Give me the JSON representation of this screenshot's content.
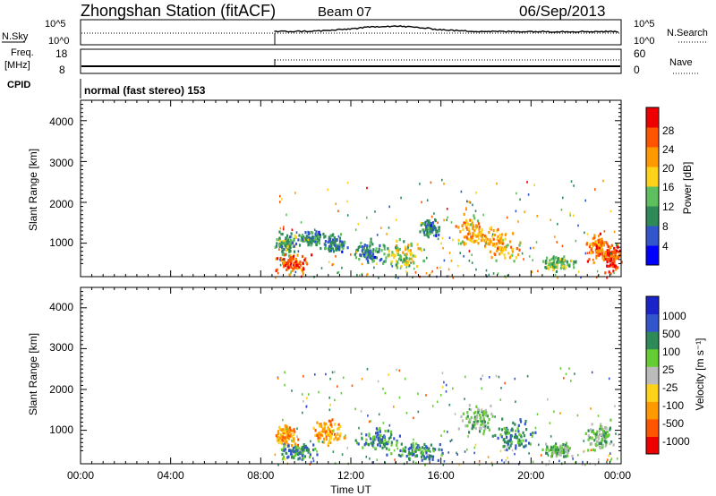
{
  "header": {
    "station": "Zhongshan Station (fitACF)",
    "beam": "Beam 07",
    "date": "06/Sep/2013"
  },
  "strip_panels": {
    "nsky": {
      "label": "N.Sky",
      "right_label": "N.Search",
      "left_ticks": [
        "10^5",
        "10^0"
      ],
      "right_ticks": [
        "10^5",
        "10^0"
      ]
    },
    "freq": {
      "label_line1": "Freq.",
      "label_line2": "[MHz]",
      "right_label": "Nave",
      "left_ticks": [
        "18",
        "8"
      ],
      "right_ticks": [
        "60",
        "0"
      ]
    },
    "cpid": {
      "label": "CPID",
      "mode": "normal (fast stereo) 153"
    }
  },
  "colors": {
    "power_scale": [
      "#0000ff",
      "#3355cc",
      "#2e8b57",
      "#5fbf5f",
      "#ffd21a",
      "#ff9900",
      "#ff5500",
      "#ee0000"
    ],
    "velocity_scale": [
      "#ee0000",
      "#ff5500",
      "#ff9900",
      "#ffd21a",
      "#bbbbbb",
      "#66cc33",
      "#2e8b57",
      "#3355cc",
      "#1b24c8"
    ]
  },
  "chart_data": [
    {
      "type": "heatmap",
      "title": "",
      "ylabel": "Slant Range [km]",
      "xlabel": "Time UT",
      "x_ticks": [
        "00:00",
        "04:00",
        "08:00",
        "12:00",
        "16:00",
        "20:00",
        "00:00"
      ],
      "y_ticks": [
        "1000",
        "2000",
        "3000",
        "4000"
      ],
      "xlim": [
        0,
        24
      ],
      "ylim": [
        180,
        4500
      ],
      "colorbar": {
        "label": "Power [dB]",
        "ticks": [
          "28",
          "24",
          "20",
          "16",
          "12",
          "8",
          "4"
        ],
        "range": [
          0,
          32
        ]
      },
      "data_window_hours": [
        8.6,
        24
      ],
      "clusters": [
        {
          "t": 9.1,
          "r": 1000,
          "dt": 0.6,
          "dr": 350,
          "level": 12
        },
        {
          "t": 9.3,
          "r": 550,
          "dt": 1.0,
          "dr": 280,
          "level": 26
        },
        {
          "t": 10.2,
          "r": 1150,
          "dt": 0.6,
          "dr": 200,
          "level": 10
        },
        {
          "t": 11.2,
          "r": 1000,
          "dt": 0.7,
          "dr": 300,
          "level": 9
        },
        {
          "t": 12.8,
          "r": 800,
          "dt": 0.9,
          "dr": 350,
          "level": 10
        },
        {
          "t": 14.3,
          "r": 750,
          "dt": 1.0,
          "dr": 400,
          "level": 16
        },
        {
          "t": 15.5,
          "r": 1400,
          "dt": 0.5,
          "dr": 300,
          "level": 9
        },
        {
          "t": 17.4,
          "r": 1300,
          "dt": 0.9,
          "dr": 500,
          "level": 21
        },
        {
          "t": 18.6,
          "r": 1000,
          "dt": 1.0,
          "dr": 500,
          "level": 20
        },
        {
          "t": 21.2,
          "r": 550,
          "dt": 0.8,
          "dr": 220,
          "level": 14
        },
        {
          "t": 22.9,
          "r": 900,
          "dt": 0.6,
          "dr": 400,
          "level": 24
        },
        {
          "t": 23.6,
          "r": 700,
          "dt": 0.5,
          "dr": 450,
          "level": 27
        }
      ]
    },
    {
      "type": "heatmap",
      "title": "",
      "ylabel": "Slant Range [km]",
      "xlabel": "Time UT",
      "x_ticks": [
        "00:00",
        "04:00",
        "08:00",
        "12:00",
        "16:00",
        "20:00",
        "00:00"
      ],
      "y_ticks": [
        "1000",
        "2000",
        "3000",
        "4000"
      ],
      "xlim": [
        0,
        24
      ],
      "ylim": [
        180,
        4500
      ],
      "colorbar": {
        "label": "Velocity [m s⁻¹]",
        "ticks": [
          "1000",
          "500",
          "100",
          "25",
          "-25",
          "-100",
          "-500",
          "-1000"
        ]
      },
      "data_window_hours": [
        8.6,
        24
      ],
      "clusters": [
        {
          "t": 9.1,
          "r": 900,
          "dt": 0.6,
          "dr": 350,
          "level": -100
        },
        {
          "t": 9.6,
          "r": 500,
          "dt": 1.0,
          "dr": 280,
          "level": 500
        },
        {
          "t": 11.0,
          "r": 1000,
          "dt": 0.9,
          "dr": 350,
          "level": -100
        },
        {
          "t": 13.2,
          "r": 800,
          "dt": 1.2,
          "dr": 400,
          "level": 500
        },
        {
          "t": 15.0,
          "r": 500,
          "dt": 1.2,
          "dr": 300,
          "level": 500
        },
        {
          "t": 17.6,
          "r": 1300,
          "dt": 0.9,
          "dr": 500,
          "level": 100
        },
        {
          "t": 19.2,
          "r": 900,
          "dt": 1.0,
          "dr": 450,
          "level": 500
        },
        {
          "t": 21.2,
          "r": 550,
          "dt": 0.8,
          "dr": 250,
          "level": 100
        },
        {
          "t": 23.0,
          "r": 900,
          "dt": 0.8,
          "dr": 450,
          "level": 100
        }
      ]
    }
  ]
}
